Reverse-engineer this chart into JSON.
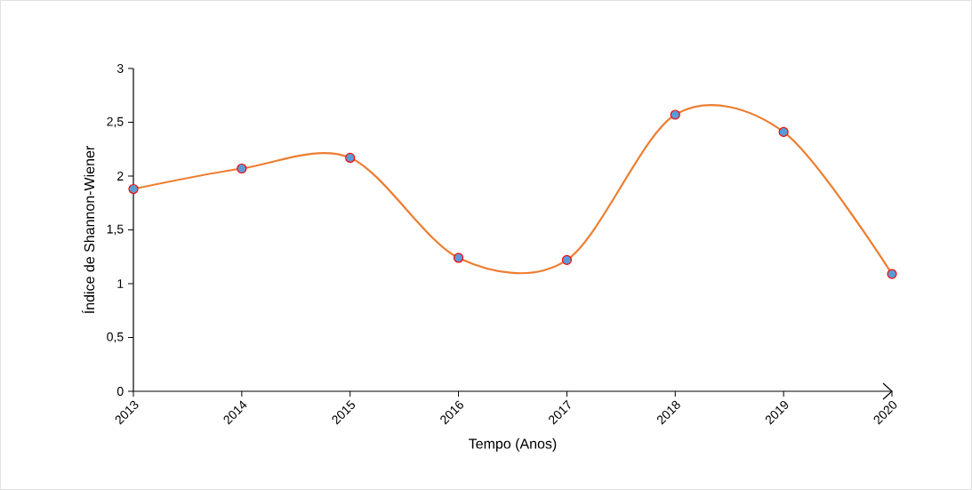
{
  "chart_data": {
    "type": "line",
    "xlabel": "Tempo (Anos)",
    "ylabel": "Índice  de Shannon-Wiener",
    "categories": [
      "2013",
      "2014",
      "2015",
      "2016",
      "2017",
      "2018",
      "2019",
      "2020"
    ],
    "series": [
      {
        "color": "#ed7d31",
        "values": [
          1.88,
          2.07,
          2.17,
          1.24,
          1.22,
          2.57,
          2.41,
          1.09
        ]
      }
    ],
    "ylim": [
      0,
      3
    ],
    "yticks": [
      0,
      {
        "value": 0.5,
        "label": "0,5"
      },
      1,
      {
        "value": 1.5,
        "label": "1,5"
      },
      2,
      {
        "value": 2.5,
        "label": "2,5"
      },
      3
    ],
    "marker": "circle",
    "grid": false
  }
}
